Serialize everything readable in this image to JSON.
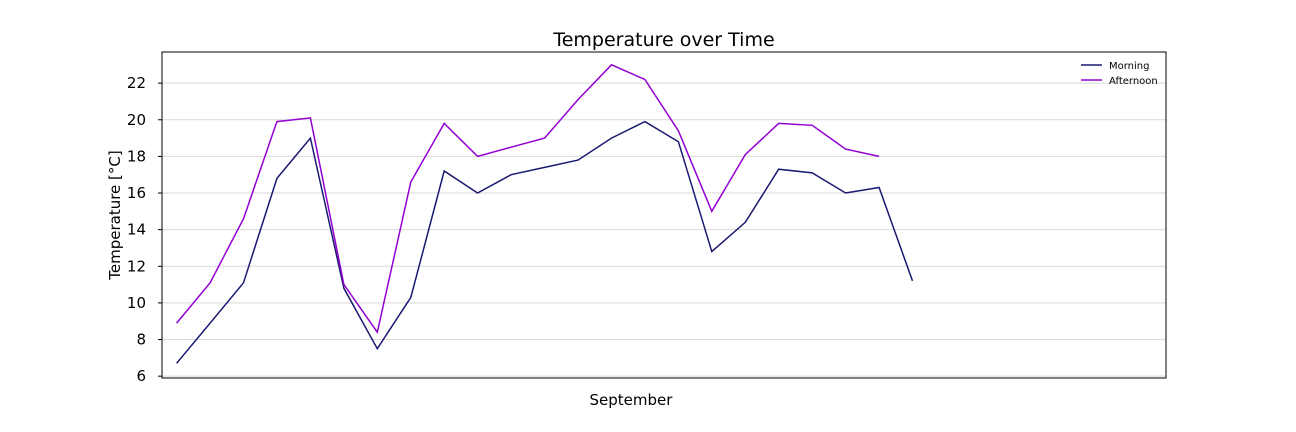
{
  "chart_data": {
    "type": "line",
    "title": "Temperature over Time",
    "xlabel": "September",
    "ylabel": "Temperature [°C]",
    "ylim": [
      5.9,
      23.7
    ],
    "yticks": [
      6,
      8,
      10,
      12,
      14,
      16,
      18,
      20,
      22
    ],
    "grid": "horizontal",
    "legend_position": "top-right",
    "series": [
      {
        "name": "Morning",
        "color": "#191970",
        "x": [
          1,
          2,
          3,
          4,
          5,
          6,
          7,
          8,
          9,
          10,
          11,
          12,
          13,
          14,
          15,
          16,
          17,
          18,
          19,
          20,
          21,
          22,
          23
        ],
        "values": [
          6.7,
          8.9,
          11.1,
          16.8,
          19.0,
          10.8,
          7.5,
          10.3,
          17.2,
          16.0,
          17.0,
          17.4,
          17.8,
          19.0,
          19.9,
          18.8,
          12.8,
          14.4,
          17.3,
          17.1,
          16.0,
          16.3,
          11.2
        ]
      },
      {
        "name": "Afternoon",
        "color": "#9400D3",
        "x": [
          1,
          2,
          3,
          4,
          5,
          6,
          7,
          8,
          9,
          10,
          11,
          12,
          13,
          14,
          15,
          16,
          17,
          18,
          19,
          20,
          21,
          22
        ],
        "values": [
          8.9,
          11.1,
          14.6,
          19.9,
          20.1,
          11.0,
          8.4,
          16.6,
          19.8,
          18.0,
          18.5,
          19.0,
          21.1,
          23.0,
          22.2,
          19.4,
          15.0,
          18.1,
          19.8,
          19.7,
          18.4,
          18.0
        ]
      }
    ]
  }
}
